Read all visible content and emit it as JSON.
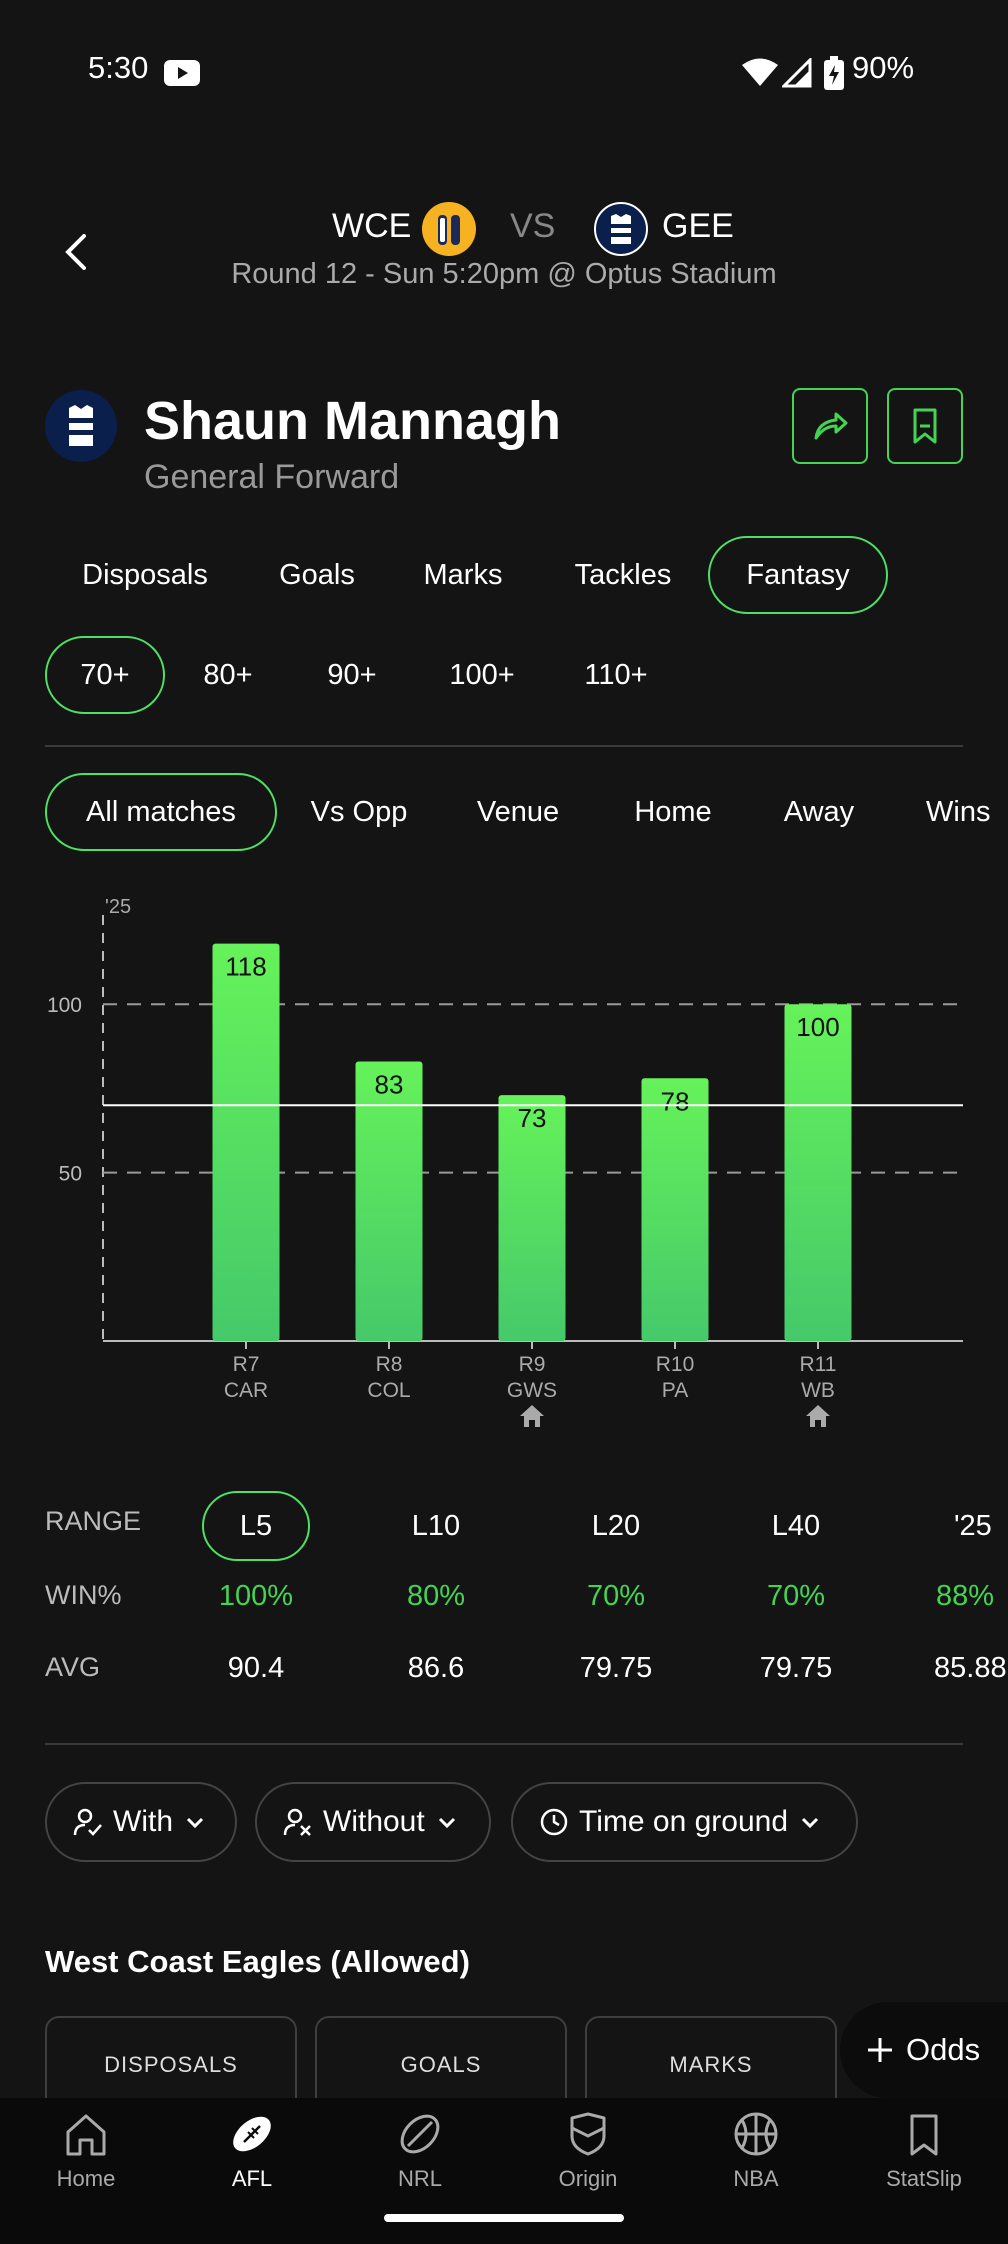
{
  "status": {
    "time": "5:30",
    "battery": "90%"
  },
  "match": {
    "home": "WCE",
    "vs": "VS",
    "away": "GEE",
    "details": "Round 12 - Sun 5:20pm @ Optus Stadium"
  },
  "player": {
    "name": "Shaun Mannagh",
    "position": "General Forward"
  },
  "stat_tabs": [
    "Disposals",
    "Goals",
    "Marks",
    "Tackles",
    "Fantasy"
  ],
  "threshold_tabs": [
    "70+",
    "80+",
    "90+",
    "100+",
    "110+"
  ],
  "match_filters": [
    "All matches",
    "Vs Opp",
    "Venue",
    "Home",
    "Away",
    "Wins"
  ],
  "chart_data": {
    "type": "bar",
    "season_label": "'25",
    "categories": [
      "R7",
      "R8",
      "R9",
      "R10",
      "R11"
    ],
    "opponents": [
      "CAR",
      "COL",
      "GWS",
      "PA",
      "WB"
    ],
    "home_game": [
      false,
      false,
      true,
      false,
      true
    ],
    "values": [
      118,
      83,
      73,
      78,
      100
    ],
    "y_ticks": [
      50,
      100
    ],
    "threshold": 70,
    "ylim": [
      0,
      125
    ],
    "bar_color_top": "#66f25a",
    "bar_color_bottom": "#45c96a"
  },
  "range": {
    "labels": {
      "range": "RANGE",
      "win": "WIN%",
      "avg": "AVG"
    },
    "columns": [
      {
        "label": "L5",
        "win": "100%",
        "avg": "90.4"
      },
      {
        "label": "L10",
        "win": "80%",
        "avg": "86.6"
      },
      {
        "label": "L20",
        "win": "70%",
        "avg": "79.75"
      },
      {
        "label": "L40",
        "win": "70%",
        "avg": "79.75"
      },
      {
        "label": "'25",
        "win": "88%",
        "avg": "85.88"
      }
    ]
  },
  "filters": {
    "with": "With",
    "without": "Without",
    "tog": "Time on ground"
  },
  "team_section": {
    "title": "West Coast Eagles (Allowed)",
    "cards": [
      "DISPOSALS",
      "GOALS",
      "MARKS"
    ],
    "odds": "Odds"
  },
  "nav": [
    "Home",
    "AFL",
    "NRL",
    "Origin",
    "NBA",
    "StatSlip"
  ],
  "colors": {
    "accent": "#43d454",
    "background": "#141414"
  }
}
